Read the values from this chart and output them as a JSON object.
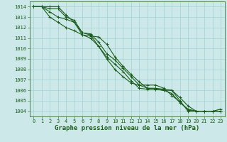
{
  "title": "Graphe pression niveau de la mer (hPa)",
  "background_color": "#cce8e8",
  "grid_color": "#99cccc",
  "line_color": "#1a5c1a",
  "xlim": [
    -0.5,
    23.5
  ],
  "ylim": [
    1003.5,
    1014.5
  ],
  "xticks": [
    0,
    1,
    2,
    3,
    4,
    5,
    6,
    7,
    8,
    9,
    10,
    11,
    12,
    13,
    14,
    15,
    16,
    17,
    18,
    19,
    20,
    21,
    22,
    23
  ],
  "yticks": [
    1004,
    1005,
    1006,
    1007,
    1008,
    1009,
    1010,
    1011,
    1012,
    1013,
    1014
  ],
  "series": [
    [
      1014.0,
      1014.0,
      1014.0,
      1014.0,
      1013.2,
      1012.5,
      1011.3,
      1011.2,
      1011.1,
      1010.4,
      1009.2,
      1008.3,
      1007.5,
      1006.8,
      1006.2,
      1006.2,
      1006.1,
      1006.0,
      1005.0,
      1004.0,
      1004.0,
      1004.0,
      1004.0,
      1004.0
    ],
    [
      1014.0,
      1014.0,
      1013.8,
      1013.8,
      1013.0,
      1012.7,
      1011.5,
      1011.4,
      1010.6,
      1009.5,
      1008.9,
      1008.1,
      1007.3,
      1006.5,
      1006.2,
      1006.1,
      1006.0,
      1006.0,
      1005.3,
      1004.5,
      1004.0,
      1004.0,
      1004.0,
      1004.0
    ],
    [
      1014.0,
      1014.0,
      1013.5,
      1013.0,
      1012.8,
      1012.5,
      1011.5,
      1011.3,
      1010.2,
      1009.2,
      1008.5,
      1007.8,
      1006.9,
      1006.2,
      1006.1,
      1006.1,
      1006.0,
      1005.7,
      1004.8,
      1004.2,
      1004.0,
      1004.0,
      1004.0,
      1004.0
    ],
    [
      1014.0,
      1014.0,
      1013.0,
      1012.5,
      1012.0,
      1011.7,
      1011.3,
      1011.0,
      1010.2,
      1009.0,
      1008.0,
      1007.3,
      1006.7,
      1006.5,
      1006.5,
      1006.5,
      1006.2,
      1005.5,
      1004.9,
      1004.1,
      1004.0,
      1004.0,
      1004.0,
      1004.2
    ]
  ],
  "marker": "+",
  "markersize": 3,
  "linewidth": 0.8,
  "tick_fontsize": 5,
  "title_fontsize": 6.5
}
